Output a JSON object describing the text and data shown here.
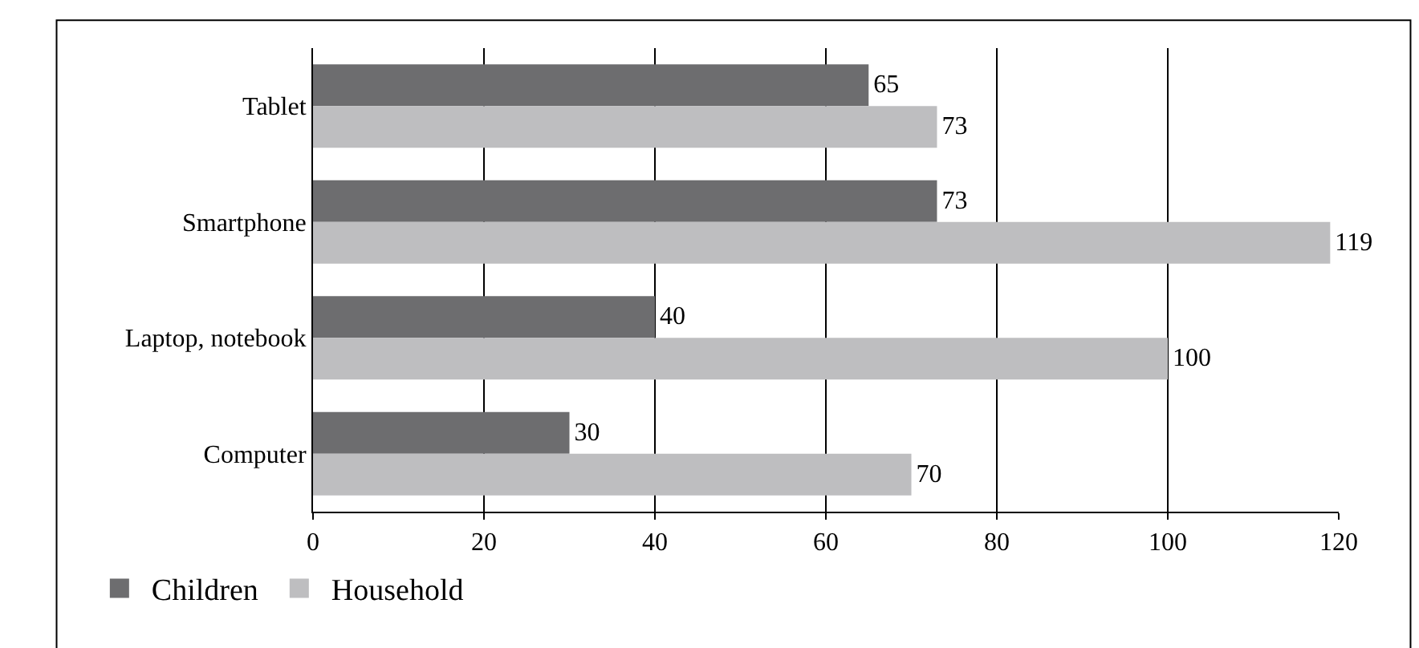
{
  "chart_data": {
    "type": "bar",
    "orientation": "horizontal",
    "categories": [
      "Tablet",
      "Smartphone",
      "Laptop, notebook",
      "Computer"
    ],
    "series": [
      {
        "name": "Children",
        "color": "#6d6d6f",
        "values": [
          65,
          73,
          40,
          30
        ]
      },
      {
        "name": "Household",
        "color": "#bebec0",
        "values": [
          73,
          119,
          100,
          70
        ]
      }
    ],
    "xlim": [
      0,
      120
    ],
    "xticks": [
      0,
      20,
      40,
      60,
      80,
      100,
      120
    ],
    "grid": "x",
    "legend": "bottom left",
    "data_labels": true
  }
}
